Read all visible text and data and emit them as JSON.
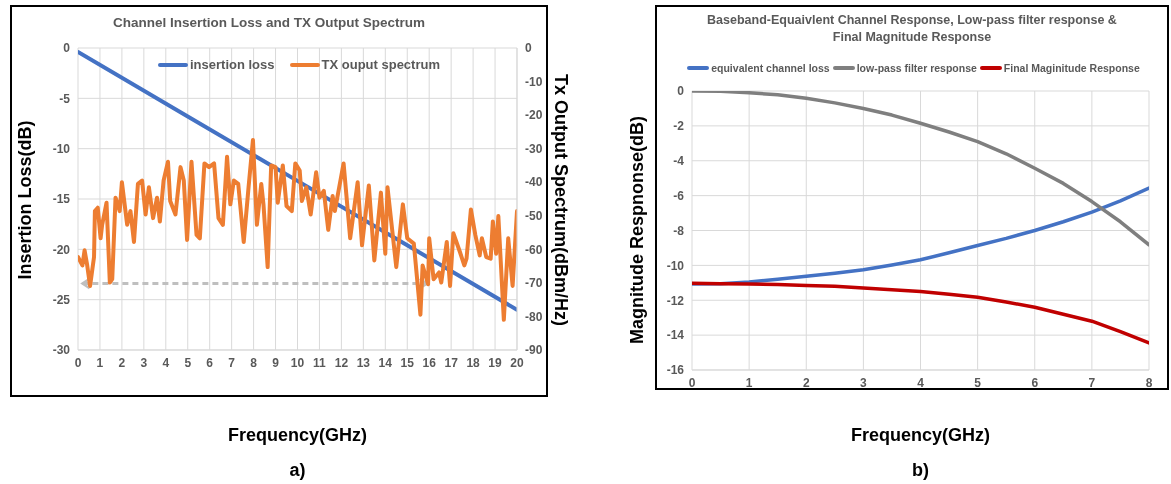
{
  "chart_data": [
    {
      "type": "line",
      "title": "Channel Insertion Loss and TX Output Spectrum",
      "xlabel": "Frequency(GHz)",
      "ylabel": "Insertion Loss(dB)",
      "y2label": "Tx Output Spectrum(dBm/Hz)",
      "annotations": [
        "a)"
      ],
      "xlim": [
        0,
        20
      ],
      "xticks": [
        0,
        1,
        2,
        3,
        4,
        5,
        6,
        7,
        8,
        9,
        10,
        11,
        12,
        13,
        14,
        15,
        16,
        17,
        18,
        19,
        20
      ],
      "ylim": [
        -30,
        0
      ],
      "yticks": [
        0,
        -5,
        -10,
        -15,
        -20,
        -25,
        -30
      ],
      "y2lim": [
        -90,
        0
      ],
      "y2ticks": [
        0,
        -10,
        -20,
        -30,
        -40,
        -50,
        -60,
        -70,
        -80,
        -90
      ],
      "grid": true,
      "legend": "top",
      "marker": "none",
      "series": [
        {
          "name": "insertion loss",
          "color": "#4472c4",
          "x": [
            0,
            5,
            10,
            15,
            20
          ],
          "values": [
            -0.4,
            -6.8,
            -13.2,
            -19.6,
            -26
          ]
        },
        {
          "color": "#bfbfbf",
          "line_style": "dashed",
          "x": [
            0.2,
            15.9
          ],
          "values": [
            -23.4,
            -23.4
          ]
        },
        {
          "name": "TX ouput spectrum",
          "color": "#ed7d31",
          "axis": "y2",
          "x": [
            0,
            0.2,
            0.3,
            0.42,
            0.55,
            0.73,
            0.77,
            0.9,
            1.03,
            1.1,
            1.3,
            1.45,
            1.56,
            1.71,
            1.9,
            2.0,
            2.24,
            2.39,
            2.55,
            2.73,
            2.92,
            3.08,
            3.23,
            3.42,
            3.6,
            3.73,
            3.9,
            4.1,
            4.2,
            4.44,
            4.67,
            4.82,
            4.97,
            5.17,
            5.4,
            5.55,
            5.76,
            5.97,
            6.2,
            6.4,
            6.6,
            6.79,
            6.94,
            7.1,
            7.3,
            7.55,
            7.77,
            7.97,
            8.15,
            8.35,
            8.45,
            8.64,
            8.8,
            9.0,
            9.1,
            9.33,
            9.5,
            9.74,
            9.9,
            10.1,
            10.2,
            10.4,
            10.6,
            10.85,
            11.0,
            11.2,
            11.4,
            11.6,
            11.7,
            12.1,
            12.4,
            12.74,
            12.94,
            13.25,
            13.5,
            13.8,
            14.0,
            14.1,
            14.5,
            14.8,
            15.0,
            15.3,
            15.6,
            15.7,
            15.95,
            16.0,
            16.2,
            16.45,
            16.55,
            16.8,
            16.95,
            17.1,
            17.4,
            17.6,
            17.7,
            17.9,
            18.1,
            18.3,
            18.4,
            18.6,
            18.8,
            18.9,
            19.05,
            19.15,
            19.4,
            19.6,
            19.8,
            20
          ],
          "values": [
            -62.3,
            -64.8,
            -60.3,
            -64.8,
            -70.9,
            -62.3,
            -48.6,
            -47.6,
            -56.7,
            -52.7,
            -46.1,
            -69.9,
            -68.9,
            -44.6,
            -48.6,
            -40,
            -52.7,
            -48.6,
            -57.8,
            -40.5,
            -39.5,
            -49.6,
            -41.5,
            -50.7,
            -44.6,
            -51.7,
            -39.5,
            -33.9,
            -45.6,
            -49.6,
            -35.5,
            -39.5,
            -57.2,
            -33.9,
            -55.7,
            -56.7,
            -34.4,
            -35.5,
            -34.4,
            -50.7,
            -52.7,
            -32.4,
            -46.6,
            -39.5,
            -40.5,
            -57.8,
            -41.5,
            -27.4,
            -52.7,
            -40.5,
            -46.6,
            -65.3,
            -35,
            -35.5,
            -46.1,
            -35,
            -47.1,
            -48.6,
            -34.4,
            -36.5,
            -45.6,
            -41.5,
            -49.6,
            -37,
            -44.6,
            -42.6,
            -54.2,
            -44.1,
            -48.6,
            -34.4,
            -56.7,
            -40,
            -58.8,
            -41,
            -63.3,
            -43.1,
            -61.3,
            -41.5,
            -65.3,
            -46.6,
            -56.7,
            -58.3,
            -79.5,
            -64.8,
            -70.4,
            -56.7,
            -68.9,
            -66.9,
            -69.9,
            -57.8,
            -70.9,
            -55.2,
            -60.8,
            -64.8,
            -62.8,
            -48.1,
            -55.7,
            -61.8,
            -56.7,
            -62.3,
            -62.8,
            -51.7,
            -61.3,
            -50.1,
            -81,
            -56.7,
            -70.9,
            -48.6
          ]
        }
      ]
    },
    {
      "type": "line",
      "title": "Baseband-Equaivlent  Channel Response, Low-pass filter response & Final Magnitude Response",
      "xlabel": "Frequency(GHz)",
      "ylabel": "Magnitude Respnonse(dB)",
      "annotations": [
        "b)"
      ],
      "xlim": [
        0,
        8
      ],
      "xticks": [
        0,
        1,
        2,
        3,
        4,
        5,
        6,
        7,
        8
      ],
      "ylim": [
        -16,
        0
      ],
      "yticks": [
        0,
        -2,
        -4,
        -6,
        -8,
        -10,
        -12,
        -14,
        -16
      ],
      "grid": true,
      "legend": "top",
      "marker": "none",
      "x": [
        0,
        0.5,
        1,
        1.5,
        2,
        2.5,
        3,
        3.5,
        4,
        4.5,
        5,
        5.5,
        6,
        6.5,
        7,
        7.5,
        8
      ],
      "series": [
        {
          "name": "equivalent channel loss",
          "color": "#4472c4",
          "values": [
            -11.07,
            -11.05,
            -10.95,
            -10.8,
            -10.63,
            -10.45,
            -10.25,
            -9.98,
            -9.68,
            -9.28,
            -8.86,
            -8.45,
            -8,
            -7.5,
            -6.95,
            -6.3,
            -5.57
          ]
        },
        {
          "name": "low-pass filter response",
          "color": "#7f7f7f",
          "values": [
            0,
            -0.02,
            -0.1,
            -0.22,
            -0.42,
            -0.68,
            -1,
            -1.38,
            -1.85,
            -2.35,
            -2.9,
            -3.6,
            -4.43,
            -5.3,
            -6.34,
            -7.5,
            -8.82
          ]
        },
        {
          "name": "Final Maginitude Response",
          "color": "#c00000",
          "values": [
            -11.03,
            -11.05,
            -11.07,
            -11.1,
            -11.15,
            -11.2,
            -11.3,
            -11.4,
            -11.5,
            -11.65,
            -11.83,
            -12.1,
            -12.4,
            -12.8,
            -13.2,
            -13.8,
            -14.45
          ]
        }
      ]
    }
  ]
}
